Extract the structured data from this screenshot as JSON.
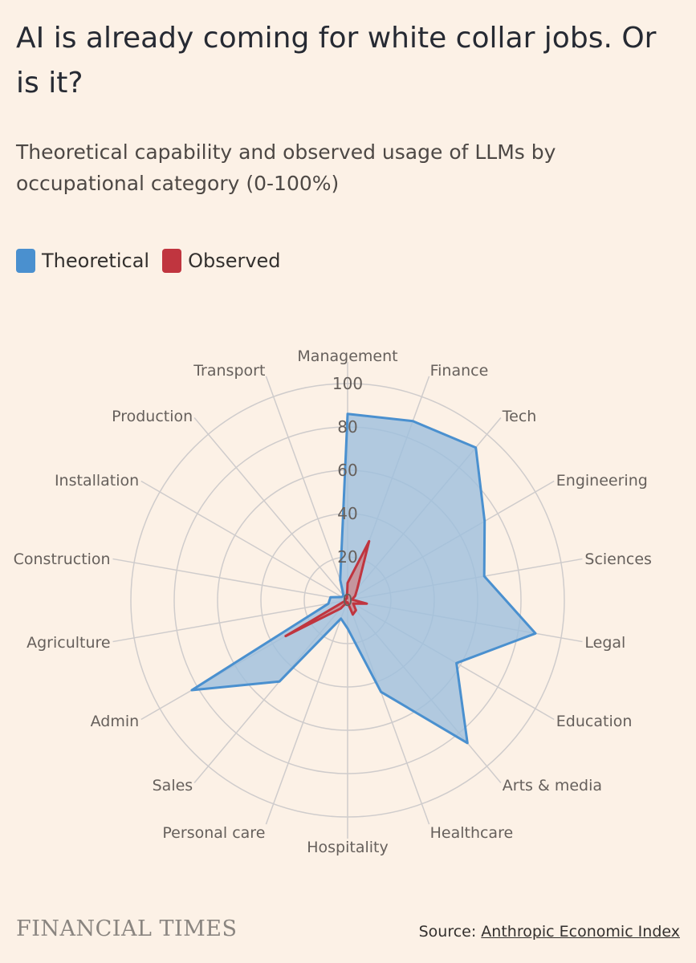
{
  "header": {
    "title": "AI is already coming for white collar jobs. Or is it?",
    "subtitle": "Theoretical capability and observed usage of LLMs by occupational category (0-100%)"
  },
  "legend": {
    "theoretical_label": "Theoretical",
    "observed_label": "Observed"
  },
  "colors": {
    "theoretical_stroke": "#4a90cf",
    "theoretical_fill": "#9dbfdd",
    "observed_stroke": "#c0353f",
    "observed_fill": "#c98d93",
    "grid": "#cfcccc",
    "background": "#fcf1e6"
  },
  "chart_data": {
    "type": "radar",
    "categories": [
      "Management",
      "Finance",
      "Tech",
      "Engineering",
      "Sciences",
      "Legal",
      "Education",
      "Arts & media",
      "Healthcare",
      "Hospitality",
      "Personal care",
      "Sales",
      "Admin",
      "Agriculture",
      "Construction",
      "Installation",
      "Production",
      "Transport"
    ],
    "r_ticks": [
      0,
      20,
      40,
      60,
      80,
      100
    ],
    "rlim": [
      0,
      100
    ],
    "series": [
      {
        "name": "Theoretical",
        "values": [
          86,
          88,
          92,
          73,
          64,
          88,
          58,
          86,
          45,
          13,
          9,
          49,
          83,
          9,
          8,
          3,
          3,
          10
        ]
      },
      {
        "name": "Observed",
        "values": [
          8,
          29,
          7,
          4,
          2,
          9,
          3,
          6,
          7,
          1,
          1,
          5,
          33,
          1,
          1,
          1,
          1,
          1
        ]
      }
    ]
  },
  "footer": {
    "brand": "FINANCIAL TIMES",
    "source_prefix": "Source: ",
    "source_link": "Anthropic Economic Index"
  }
}
